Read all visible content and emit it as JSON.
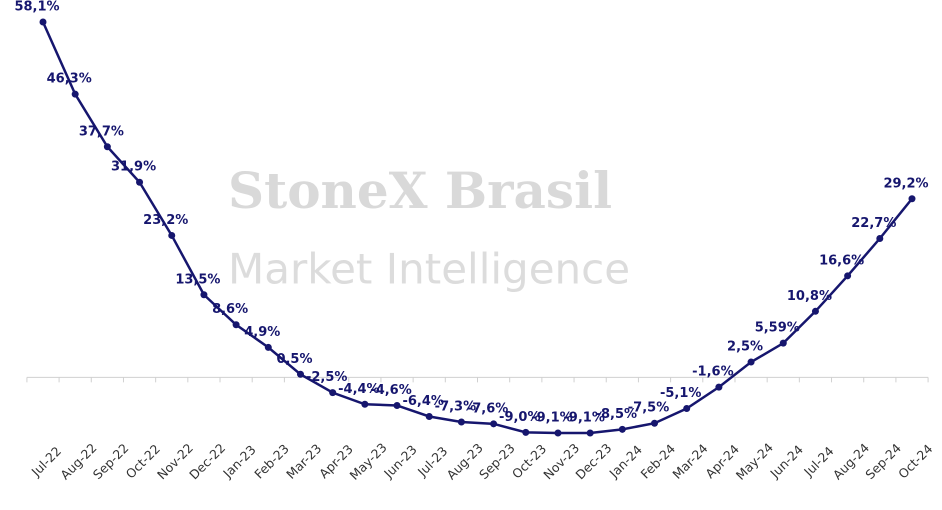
{
  "chart_data": {
    "type": "line",
    "watermark": [
      "StoneX Brasil",
      "Market Intelligence"
    ],
    "categories": [
      "Jul-22",
      "Aug-22",
      "Sep-22",
      "Oct-22",
      "Nov-22",
      "Dec-22",
      "Jan-23",
      "Feb-23",
      "Mar-23",
      "Apr-23",
      "May-23",
      "Jun-23",
      "Jul-23",
      "Aug-23",
      "Sep-23",
      "Oct-23",
      "Nov-23",
      "Dec-23",
      "Jan-24",
      "Feb-24",
      "Mar-24",
      "Apr-24",
      "May-24",
      "Jun-24",
      "Jul-24",
      "Aug-24",
      "Sep-24",
      "Oct-24"
    ],
    "values": [
      58.1,
      46.3,
      37.7,
      31.9,
      23.2,
      13.5,
      8.6,
      4.9,
      0.5,
      -2.5,
      -4.4,
      -4.6,
      -6.4,
      -7.3,
      -7.6,
      -9.0,
      -9.1,
      -9.1,
      -8.5,
      -7.5,
      -5.1,
      -1.6,
      2.5,
      5.59,
      10.8,
      16.6,
      22.7,
      29.2
    ],
    "value_labels": [
      "58,1%",
      "46,3%",
      "37,7%",
      "31,9%",
      "23,2%",
      "13,5%",
      "8,6%",
      "4,9%",
      "0,5%",
      "-2,5%",
      "-4,4%",
      "-4,6%",
      "-6,4%",
      "-7,3%",
      "-7,6%",
      "-9,0%",
      "-9,1%",
      "-9,1%",
      "-8,5%",
      "-7,5%",
      "-5,1%",
      "-1,6%",
      "2,5%",
      "5,59%",
      "10,8%",
      "16,6%",
      "22,7%",
      "29,2%"
    ],
    "color": "#16166e"
  }
}
